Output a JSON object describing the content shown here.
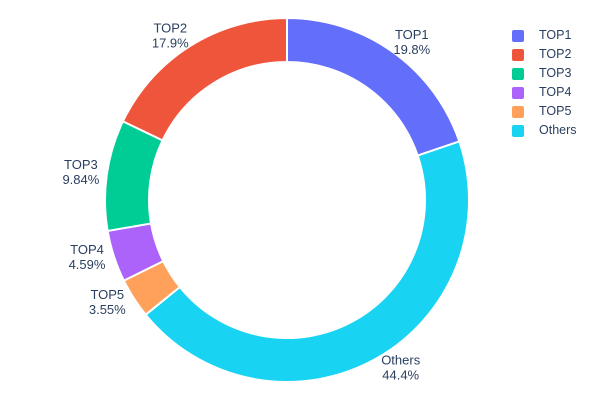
{
  "chart_data": {
    "type": "pie",
    "subtype": "donut",
    "hole": 0.76,
    "title": "",
    "labels": [
      "TOP1",
      "TOP2",
      "TOP3",
      "TOP4",
      "TOP5",
      "Others"
    ],
    "values": [
      19.8,
      17.9,
      9.84,
      4.59,
      3.55,
      44.4
    ],
    "percent_labels": [
      "19.8%",
      "17.9%",
      "9.84%",
      "4.59%",
      "3.55%",
      "44.4%"
    ],
    "colors": [
      "#636EFA",
      "#EF553B",
      "#00CC96",
      "#AB63FA",
      "#FFA15A",
      "#19D3F3"
    ],
    "slice_border_color": "#ffffff",
    "text_color": "#2a3f5f",
    "background_color": "#ffffff",
    "start_angle": "top",
    "direction": "counterclockwise",
    "labels_position": "outside",
    "legend": {
      "position": "top-right",
      "entries": [
        "TOP1",
        "TOP2",
        "TOP3",
        "TOP4",
        "TOP5",
        "Others"
      ]
    }
  }
}
